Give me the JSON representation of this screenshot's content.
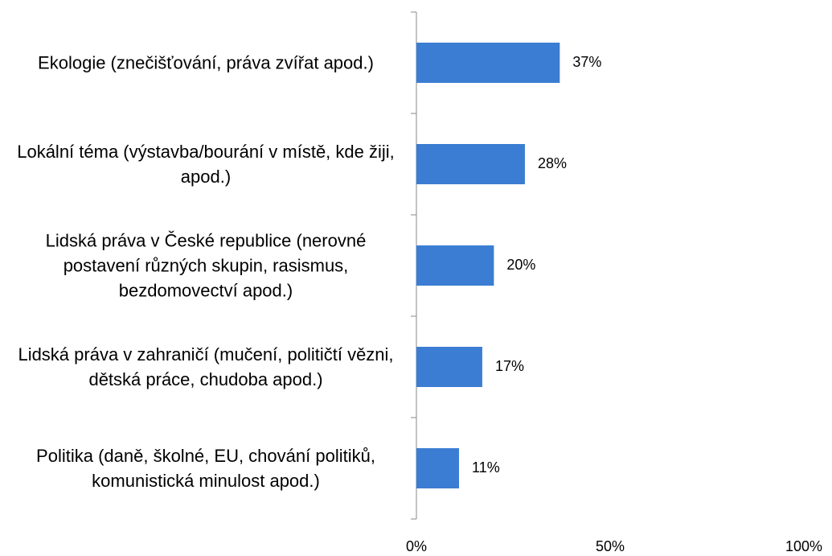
{
  "chart_data": {
    "type": "barh",
    "categories": [
      "Ekologie (znečišťování, práva zvířat apod.)",
      "Lokální téma (výstavba/bourání v místě, kde žiji, apod.)",
      "Lidská práva v České republice (nerovné postavení různých skupin, rasismus, bezdomovectví apod.)",
      "Lidská práva v zahraničí (mučení, političtí vězni, dětská práce, chudoba apod.)",
      "Politika (daně, školné, EU, chování politiků, komunistická minulost apod.)"
    ],
    "values": [
      37,
      28,
      20,
      17,
      11
    ],
    "value_labels": [
      "37%",
      "28%",
      "20%",
      "17%",
      "11%"
    ],
    "color": "#3b7dd2",
    "xlim": [
      0,
      100
    ],
    "xticks": [
      {
        "value": 0,
        "label": "0%"
      },
      {
        "value": 50,
        "label": "50%"
      },
      {
        "value": 100,
        "label": "100%"
      }
    ]
  }
}
